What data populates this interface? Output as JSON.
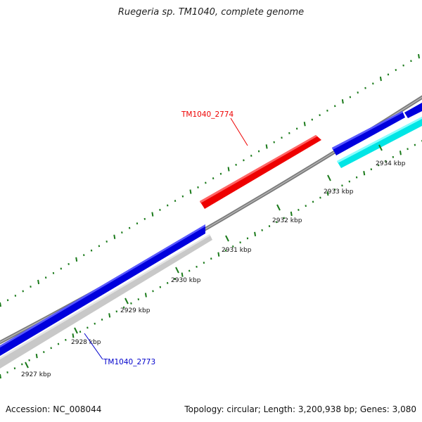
{
  "title": "Ruegeria sp. TM1040, complete genome",
  "footer": {
    "accession": "Accession: NC_008044",
    "stats": "Topology: circular; Length: 3,200,938 bp; Genes: 3,080"
  },
  "ticks": [
    {
      "label": "2927 kbp"
    },
    {
      "label": "2928 kbp"
    },
    {
      "label": "2929 kbp"
    },
    {
      "label": "2930 kbp"
    },
    {
      "label": "2931 kbp"
    },
    {
      "label": "2932 kbp"
    },
    {
      "label": "2933 kbp"
    },
    {
      "label": "2934 kbp"
    }
  ],
  "highlighted_genes": [
    {
      "name": "TM1040_2774",
      "color": "#ff0000"
    },
    {
      "name": "TM1040_2773",
      "color": "#0000cc"
    }
  ],
  "colors": {
    "forward_gene": "#0000dd",
    "reverse_gene": "#cccccc",
    "rna_gene": "#00e5e5",
    "highlight_gene": "#ee0000",
    "backbone": "#808080",
    "tick": "#1a7a1a"
  }
}
